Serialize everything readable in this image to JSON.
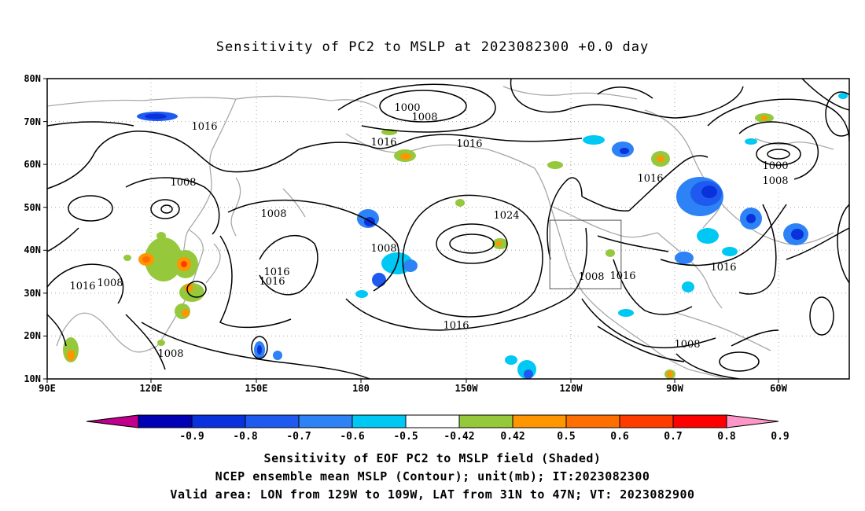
{
  "title": "Sensitivity of PC2 to MSLP at 2023082300 +0.0 day",
  "map": {
    "lat_labels": [
      "80N",
      "70N",
      "60N",
      "50N",
      "40N",
      "30N",
      "20N",
      "10N"
    ],
    "lon_labels": [
      "90E",
      "120E",
      "150E",
      "180",
      "150W",
      "120W",
      "90W",
      "60W"
    ],
    "contour_labels": [
      "1000",
      "1008",
      "1016",
      "1016",
      "1016",
      "1008",
      "1008",
      "1008",
      "1016",
      "1016",
      "1016",
      "1016",
      "1008",
      "1008",
      "1024",
      "1016",
      "1008",
      "1016",
      "1008",
      "1016",
      "1008",
      "1016",
      "1000",
      "1008",
      "1016"
    ],
    "valid_box": {
      "lon_min": -129,
      "lon_max": -109,
      "lat_min": 31,
      "lat_max": 47
    }
  },
  "colorbar": {
    "labels": [
      "-0.9",
      "-0.8",
      "-0.7",
      "-0.6",
      "-0.5",
      "-0.42",
      "0.42",
      "0.5",
      "0.6",
      "0.7",
      "0.8",
      "0.9"
    ],
    "colors": [
      "#c0008c",
      "#0000b4",
      "#0a32dc",
      "#1e5af0",
      "#2d82f5",
      "#00c8f5",
      "#ffffff",
      "#96c83c",
      "#ff9600",
      "#ff6e00",
      "#ff3c00",
      "#ff0000",
      "#ff96c8"
    ]
  },
  "captions": [
    "Sensitivity of EOF PC2 to MSLP field (Shaded)",
    "NCEP ensemble mean MSLP (Contour); unit(mb); IT:2023082300",
    "Valid area: LON from 129W to 109W, LAT from 31N to 47N; VT: 2023082900"
  ]
}
